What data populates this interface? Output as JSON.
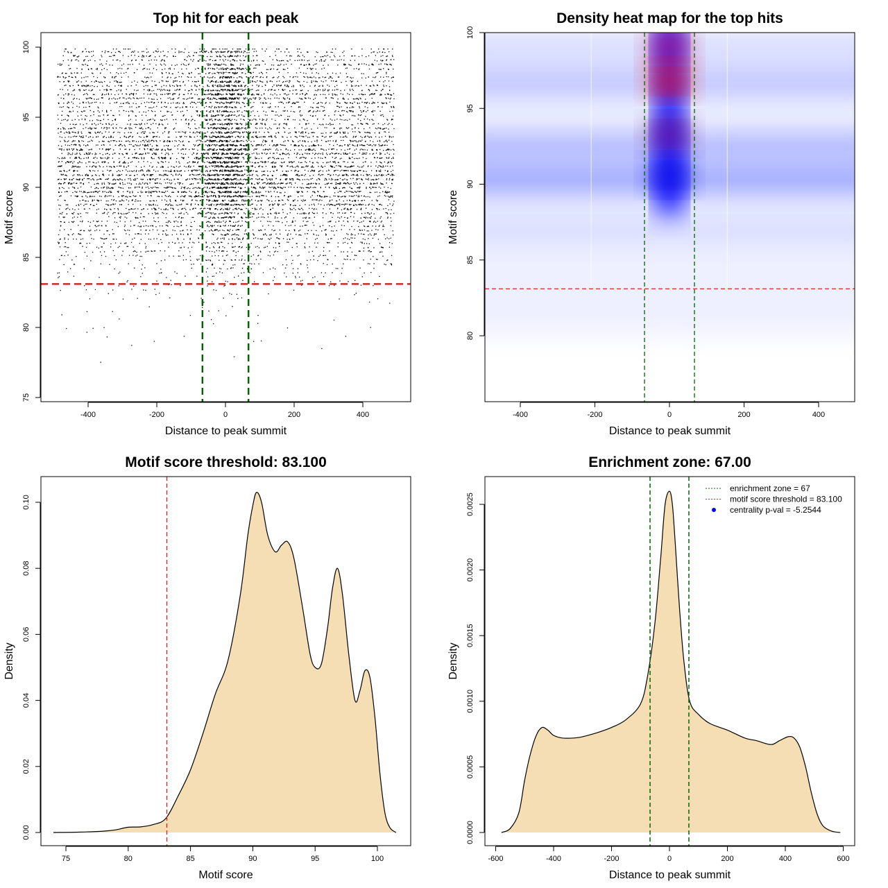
{
  "colors": {
    "green": "#006400",
    "red": "#e02020",
    "fill": "#f5deb3",
    "blue": "#0000ff"
  },
  "chart_data": [
    {
      "type": "scatter",
      "title": "Top hit for each peak",
      "xlabel": "Distance to peak summit",
      "ylabel": "Motif score",
      "xlim": [
        -540,
        540
      ],
      "ylim": [
        74.6,
        101
      ],
      "xticks": [
        -400,
        -200,
        0,
        200,
        400
      ],
      "yticks": [
        75,
        80,
        85,
        90,
        95,
        100
      ],
      "enrichment_zone": 67,
      "threshold": 83.1,
      "points_note": "~9000 hits; x uniform in [-490,490] with central enrichment; y follows motif score density",
      "n_points": 9000
    },
    {
      "type": "heatmap",
      "title": "Density heat map for the top hits",
      "xlabel": "Distance to peak summit",
      "ylabel": "Motif score",
      "xlim": [
        -490,
        500
      ],
      "ylim": [
        75.6,
        100
      ],
      "xticks": [
        -400,
        -200,
        0,
        200,
        400
      ],
      "yticks": [
        80,
        85,
        90,
        95,
        100
      ],
      "enrichment_zone": 67,
      "threshold": 83.1,
      "hotspots": [
        {
          "x": 0,
          "y": 99.0,
          "intensity": 0.8
        },
        {
          "x": 0,
          "y": 96.8,
          "intensity": 1.0
        },
        {
          "x": 0,
          "y": 93.3,
          "intensity": 0.7
        },
        {
          "x": 0,
          "y": 90.6,
          "intensity": 0.55
        }
      ],
      "bands": [
        {
          "y": 90.3,
          "intensity": 0.6
        },
        {
          "y": 92.5,
          "intensity": 0.45
        },
        {
          "y": 96.7,
          "intensity": 0.35
        },
        {
          "y": 99.0,
          "intensity": 0.15
        },
        {
          "y": 87.0,
          "intensity": 0.15
        }
      ]
    },
    {
      "type": "area",
      "title": "Motif score threshold: 83.100",
      "xlabel": "Motif score",
      "ylabel": "Density",
      "xlim": [
        73.5,
        102.5
      ],
      "ylim": [
        -0.004,
        0.107
      ],
      "xticks": [
        75,
        80,
        85,
        90,
        95,
        100
      ],
      "yticks": [
        "0.00",
        "0.02",
        "0.04",
        "0.06",
        "0.08",
        "0.10"
      ],
      "threshold": 83.1,
      "x": [
        74,
        76,
        78,
        79,
        80,
        81,
        82,
        83,
        84,
        85,
        86,
        87,
        88,
        89,
        89.6,
        90,
        90.3,
        90.7,
        91.2,
        91.8,
        92.3,
        92.8,
        93.3,
        94,
        94.6,
        95,
        95.5,
        96,
        96.4,
        96.8,
        97.2,
        97.7,
        98.2,
        98.6,
        99,
        99.4,
        99.8,
        100.2,
        100.6,
        101,
        101.5
      ],
      "y": [
        0,
        0.0001,
        0.0004,
        0.0008,
        0.0016,
        0.0017,
        0.0024,
        0.0042,
        0.011,
        0.019,
        0.03,
        0.042,
        0.052,
        0.072,
        0.09,
        0.099,
        0.103,
        0.1,
        0.09,
        0.085,
        0.087,
        0.088,
        0.083,
        0.068,
        0.054,
        0.05,
        0.051,
        0.062,
        0.074,
        0.08,
        0.072,
        0.054,
        0.04,
        0.043,
        0.049,
        0.047,
        0.035,
        0.018,
        0.006,
        0.0015,
        0
      ]
    },
    {
      "type": "area",
      "title": "Enrichment zone: 67.00",
      "xlabel": "Distance to peak summit",
      "ylabel": "Density",
      "xlim": [
        -640,
        640
      ],
      "ylim": [
        -0.0001,
        0.00267
      ],
      "xticks": [
        -600,
        -400,
        -200,
        0,
        200,
        400,
        600
      ],
      "yticks": [
        "0.0000",
        "0.0005",
        "0.0010",
        "0.0015",
        "0.0020",
        "0.0025"
      ],
      "enrichment_zone": 67,
      "x": [
        -580,
        -550,
        -520,
        -500,
        -480,
        -460,
        -440,
        -420,
        -400,
        -370,
        -330,
        -300,
        -250,
        -200,
        -150,
        -100,
        -75,
        -50,
        -30,
        -15,
        0,
        10,
        20,
        35,
        50,
        70,
        100,
        140,
        200,
        260,
        300,
        350,
        380,
        410,
        430,
        450,
        470,
        490,
        510,
        530,
        560,
        590
      ],
      "y": [
        0,
        3e-05,
        0.00015,
        0.0004,
        0.0006,
        0.00074,
        0.0008,
        0.00078,
        0.00074,
        0.00072,
        0.00072,
        0.00073,
        0.00076,
        0.0008,
        0.00086,
        0.00098,
        0.0012,
        0.0016,
        0.0021,
        0.0025,
        0.0026,
        0.0025,
        0.0022,
        0.0017,
        0.0013,
        0.001,
        0.0009,
        0.00083,
        0.00078,
        0.00072,
        0.0007,
        0.00067,
        0.0007,
        0.00073,
        0.00072,
        0.00065,
        0.0005,
        0.0003,
        0.00014,
        5e-05,
        1e-05,
        0
      ],
      "legend": [
        {
          "label": "enrichment zone = 67",
          "style": "dotted-green"
        },
        {
          "label": "motif score threshold = 83.100",
          "style": "dotted-red"
        },
        {
          "label": "centrality p-val = -5.2544",
          "style": "blue-dot"
        }
      ],
      "legend_position": "top-right"
    }
  ]
}
